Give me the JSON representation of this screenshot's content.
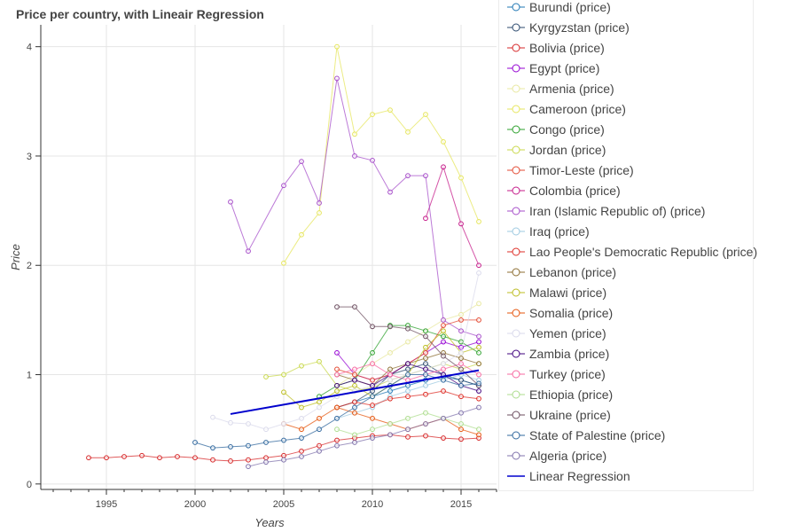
{
  "chart_data": {
    "type": "line",
    "title": "Price per country, with Lineair Regression",
    "xlabel": "Years",
    "ylabel": "Price",
    "xlim": [
      1991.3,
      2017
    ],
    "ylim": [
      -0.05,
      4.2
    ],
    "xticks": [
      1995,
      2000,
      2005,
      2010,
      2015
    ],
    "yticks": [
      0,
      1,
      2,
      3,
      4
    ],
    "grid": true,
    "legend_position": "right",
    "series": [
      {
        "name": "Burundi (price)",
        "color": "#1f77b4",
        "x": [
          2009,
          2010,
          2011,
          2012,
          2013,
          2014,
          2015,
          2016
        ],
        "y": [
          0.75,
          0.8,
          0.85,
          0.9,
          0.95,
          0.98,
          0.95,
          0.9
        ]
      },
      {
        "name": "Kyrgyzstan (price)",
        "color": "#2c4a6e",
        "x": [
          2008,
          2009,
          2010,
          2011,
          2012,
          2013,
          2014,
          2015,
          2016
        ],
        "y": [
          0.7,
          0.75,
          0.85,
          1.0,
          1.05,
          1.1,
          1.0,
          0.95,
          0.9
        ]
      },
      {
        "name": "Bolivia (price)",
        "color": "#d62728",
        "x": [
          1994,
          1995,
          1996,
          1997,
          1998,
          1999,
          2000,
          2001,
          2002,
          2003,
          2004,
          2005,
          2006,
          2007,
          2008,
          2009,
          2010,
          2011,
          2012,
          2013,
          2014,
          2015,
          2016
        ],
        "y": [
          0.24,
          0.24,
          0.25,
          0.26,
          0.24,
          0.25,
          0.24,
          0.22,
          0.21,
          0.22,
          0.24,
          0.26,
          0.3,
          0.35,
          0.4,
          0.42,
          0.44,
          0.45,
          0.43,
          0.44,
          0.42,
          0.41,
          0.42
        ]
      },
      {
        "name": "Egypt (price)",
        "color": "#9400d3",
        "x": [
          2008,
          2009,
          2010,
          2011,
          2012,
          2013,
          2014,
          2015,
          2016
        ],
        "y": [
          1.2,
          1.0,
          0.95,
          1.0,
          1.1,
          1.2,
          1.3,
          1.25,
          1.3
        ]
      },
      {
        "name": "Armenia (price)",
        "color": "#e8e8a0",
        "x": [
          2008,
          2009,
          2010,
          2011,
          2012,
          2013,
          2014,
          2015,
          2016
        ],
        "y": [
          0.9,
          1.0,
          1.1,
          1.2,
          1.3,
          1.4,
          1.5,
          1.55,
          1.65
        ]
      },
      {
        "name": "Cameroon (price)",
        "color": "#e6e65c",
        "x": [
          2005,
          2006,
          2007,
          2008,
          2009,
          2010,
          2011,
          2012,
          2013,
          2014,
          2015,
          2016
        ],
        "y": [
          2.02,
          2.28,
          2.48,
          4.0,
          3.2,
          3.38,
          3.42,
          3.22,
          3.38,
          3.13,
          2.8,
          2.4
        ]
      },
      {
        "name": "Congo (price)",
        "color": "#2ca02c",
        "x": [
          2007,
          2008,
          2009,
          2010,
          2011,
          2012,
          2013,
          2014,
          2015,
          2016
        ],
        "y": [
          0.8,
          0.9,
          0.95,
          1.2,
          1.45,
          1.45,
          1.4,
          1.35,
          1.3,
          1.2
        ]
      },
      {
        "name": "Jordan (price)",
        "color": "#c8d84a",
        "x": [
          2004,
          2005,
          2006,
          2007,
          2008,
          2009,
          2010,
          2011,
          2012,
          2013,
          2014,
          2015,
          2016
        ],
        "y": [
          0.98,
          1.0,
          1.08,
          1.12,
          0.9,
          0.85,
          0.88,
          0.95,
          1.0,
          1.05,
          1.1,
          1.05,
          1.1
        ]
      },
      {
        "name": "Timor-Leste (price)",
        "color": "#e34a33",
        "x": [
          2008,
          2009,
          2010,
          2011,
          2012,
          2013,
          2014,
          2015,
          2016
        ],
        "y": [
          1.05,
          1.0,
          0.95,
          1.0,
          1.1,
          1.2,
          1.45,
          1.5,
          1.5
        ]
      },
      {
        "name": "Colombia (price)",
        "color": "#c51b8a",
        "x": [
          2013,
          2014,
          2015,
          2016
        ],
        "y": [
          2.43,
          2.9,
          2.38,
          2.0
        ]
      },
      {
        "name": "Iran  (Islamic Republic of) (price)",
        "color": "#a64dc9",
        "x": [
          2002,
          2003,
          2005,
          2006,
          2007,
          2008,
          2009,
          2010,
          2011,
          2012,
          2013,
          2014,
          2015,
          2016
        ],
        "y": [
          2.58,
          2.13,
          2.73,
          2.95,
          2.57,
          3.71,
          3.0,
          2.96,
          2.67,
          2.82,
          2.82,
          1.5,
          1.4,
          1.35
        ]
      },
      {
        "name": "Iraq (price)",
        "color": "#9ecae1",
        "x": [
          2008,
          2009,
          2010,
          2011,
          2012,
          2013,
          2014,
          2015,
          2016
        ],
        "y": [
          0.6,
          0.65,
          0.7,
          0.8,
          0.85,
          0.9,
          0.95,
          1.0,
          0.95
        ]
      },
      {
        "name": "Lao People's Democratic Republic (price)",
        "color": "#de2d26",
        "x": [
          2008,
          2009,
          2010,
          2011,
          2012,
          2013,
          2014,
          2015,
          2016
        ],
        "y": [
          0.7,
          0.75,
          0.72,
          0.78,
          0.8,
          0.82,
          0.85,
          0.8,
          0.78
        ]
      },
      {
        "name": "Lebanon (price)",
        "color": "#8c6d31",
        "x": [
          2008,
          2009,
          2010,
          2011,
          2012,
          2013,
          2014,
          2015,
          2016
        ],
        "y": [
          1.0,
          0.95,
          0.9,
          1.05,
          1.1,
          1.15,
          1.2,
          1.15,
          1.1
        ]
      },
      {
        "name": "Malawi (price)",
        "color": "#bcbd22",
        "x": [
          2005,
          2006,
          2007,
          2008,
          2009,
          2010,
          2011,
          2012,
          2013,
          2014,
          2015,
          2016
        ],
        "y": [
          0.84,
          0.7,
          0.75,
          0.85,
          0.9,
          0.8,
          0.9,
          1.0,
          1.25,
          1.4,
          1.2,
          1.25
        ]
      },
      {
        "name": "Somalia (price)",
        "color": "#e6550d",
        "x": [
          2005,
          2006,
          2007,
          2008,
          2009,
          2010,
          2011,
          2012,
          2013,
          2014,
          2015,
          2016
        ],
        "y": [
          0.55,
          0.5,
          0.6,
          0.7,
          0.65,
          0.6,
          0.55,
          0.5,
          0.55,
          0.6,
          0.5,
          0.45
        ]
      },
      {
        "name": "Yemen (price)",
        "color": "#dadaeb",
        "x": [
          2001,
          2002,
          2003,
          2004,
          2005,
          2006,
          2007,
          2008,
          2009,
          2010,
          2011,
          2012,
          2013,
          2014,
          2015,
          2016
        ],
        "y": [
          0.61,
          0.56,
          0.55,
          0.5,
          0.55,
          0.6,
          0.7,
          0.8,
          0.85,
          0.9,
          0.95,
          1.0,
          1.05,
          1.1,
          1.2,
          1.93
        ]
      },
      {
        "name": "Zambia (price)",
        "color": "#3f007d",
        "x": [
          2008,
          2009,
          2010,
          2011,
          2012,
          2013,
          2014,
          2015,
          2016
        ],
        "y": [
          0.9,
          0.95,
          0.9,
          1.0,
          1.1,
          1.05,
          1.0,
          0.9,
          0.85
        ]
      },
      {
        "name": "Turkey (price)",
        "color": "#f768a1",
        "x": [
          2008,
          2009,
          2010,
          2011,
          2012,
          2013,
          2014,
          2015,
          2016
        ],
        "y": [
          1.0,
          1.05,
          1.1,
          1.0,
          0.95,
          1.0,
          1.05,
          1.1,
          1.0
        ]
      },
      {
        "name": "Ethiopia (price)",
        "color": "#addd8e",
        "x": [
          2008,
          2009,
          2010,
          2011,
          2012,
          2013,
          2014,
          2015,
          2016
        ],
        "y": [
          0.5,
          0.45,
          0.5,
          0.55,
          0.6,
          0.65,
          0.6,
          0.55,
          0.5
        ]
      },
      {
        "name": "Ukraine (price)",
        "color": "#6b4c5e",
        "x": [
          2008,
          2009,
          2010,
          2011,
          2012,
          2013,
          2014,
          2015,
          2016
        ],
        "y": [
          1.62,
          1.62,
          1.44,
          1.44,
          1.42,
          1.35,
          1.17,
          1.05,
          0.9
        ]
      },
      {
        "name": "State of Palestine (price)",
        "color": "#31689e",
        "x": [
          2000,
          2001,
          2002,
          2003,
          2004,
          2005,
          2006,
          2007,
          2008,
          2009,
          2010,
          2011,
          2012,
          2013,
          2014,
          2015,
          2016
        ],
        "y": [
          0.38,
          0.33,
          0.34,
          0.35,
          0.38,
          0.4,
          0.42,
          0.5,
          0.6,
          0.7,
          0.8,
          0.9,
          1.0,
          1.0,
          0.95,
          0.9,
          0.92
        ]
      },
      {
        "name": "Algeria (price)",
        "color": "#8073ac",
        "x": [
          2003,
          2004,
          2005,
          2006,
          2007,
          2008,
          2009,
          2010,
          2011,
          2012,
          2013,
          2014,
          2015,
          2016
        ],
        "y": [
          0.16,
          0.2,
          0.22,
          0.25,
          0.3,
          0.35,
          0.38,
          0.42,
          0.45,
          0.5,
          0.55,
          0.6,
          0.65,
          0.7
        ]
      }
    ],
    "regression": {
      "name": "Linear Regression",
      "color": "#0000cd",
      "x": [
        2002,
        2016
      ],
      "y": [
        0.64,
        1.04
      ]
    }
  }
}
